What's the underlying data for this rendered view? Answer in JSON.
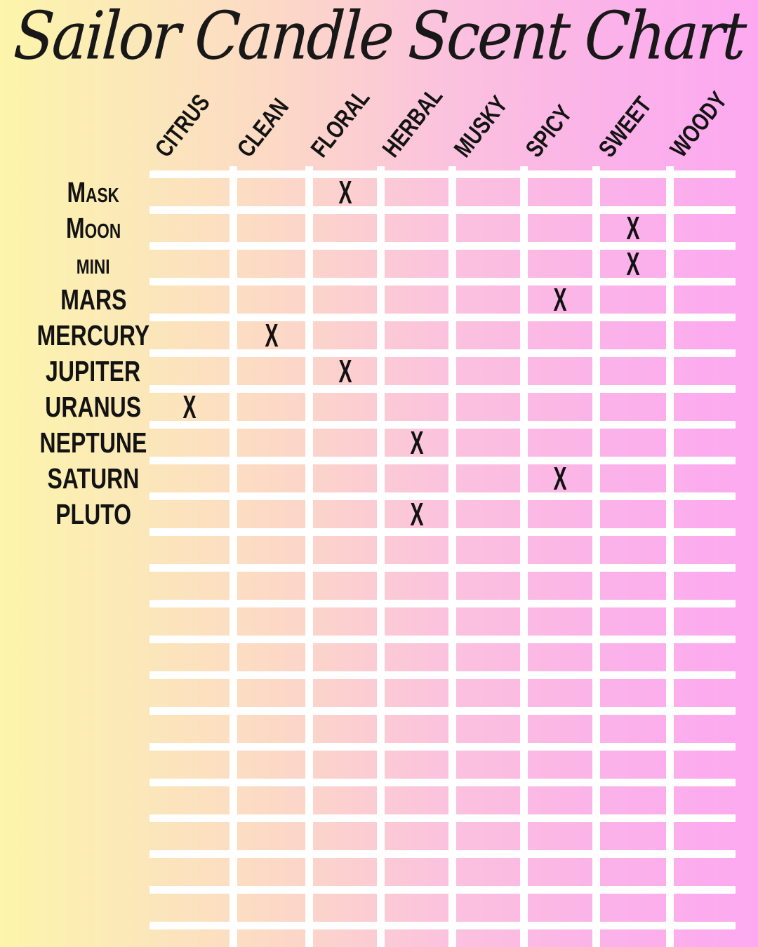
{
  "title": "Sailor Candle Scent Chart",
  "colors": {
    "background_gradient_left": "#fdf5ab",
    "background_gradient_right": "#fda9f1",
    "grid_line": "#ffffff",
    "text": "#141414"
  },
  "chart_data": {
    "type": "table",
    "title": "Sailor Candle Scent Chart",
    "columns": [
      "CITRUS",
      "CLEAN",
      "FLORAL",
      "HERBAL",
      "MUSKY",
      "SPICY",
      "SWEET",
      "WOODY"
    ],
    "rows": [
      "Mask",
      "Moon",
      "mini",
      "MARS",
      "MERCURY",
      "JUPITER",
      "URANUS",
      "NEPTUNE",
      "SATURN",
      "PLUTO"
    ],
    "mark_symbol": "X",
    "marks": [
      {
        "row": "Mask",
        "column": "FLORAL"
      },
      {
        "row": "Moon",
        "column": "SWEET"
      },
      {
        "row": "mini",
        "column": "SWEET"
      },
      {
        "row": "MARS",
        "column": "SPICY"
      },
      {
        "row": "MERCURY",
        "column": "CLEAN"
      },
      {
        "row": "JUPITER",
        "column": "FLORAL"
      },
      {
        "row": "URANUS",
        "column": "CITRUS"
      },
      {
        "row": "NEPTUNE",
        "column": "HERBAL"
      },
      {
        "row": "SATURN",
        "column": "SPICY"
      },
      {
        "row": "PLUTO",
        "column": "HERBAL"
      }
    ],
    "layout_hints": {
      "empty_trailing_rows": 12,
      "grid_lines": "white lattice over gradient, grid runs off bottom edge",
      "column_headers_rotated": true,
      "legend": "none",
      "axes": "none"
    }
  }
}
